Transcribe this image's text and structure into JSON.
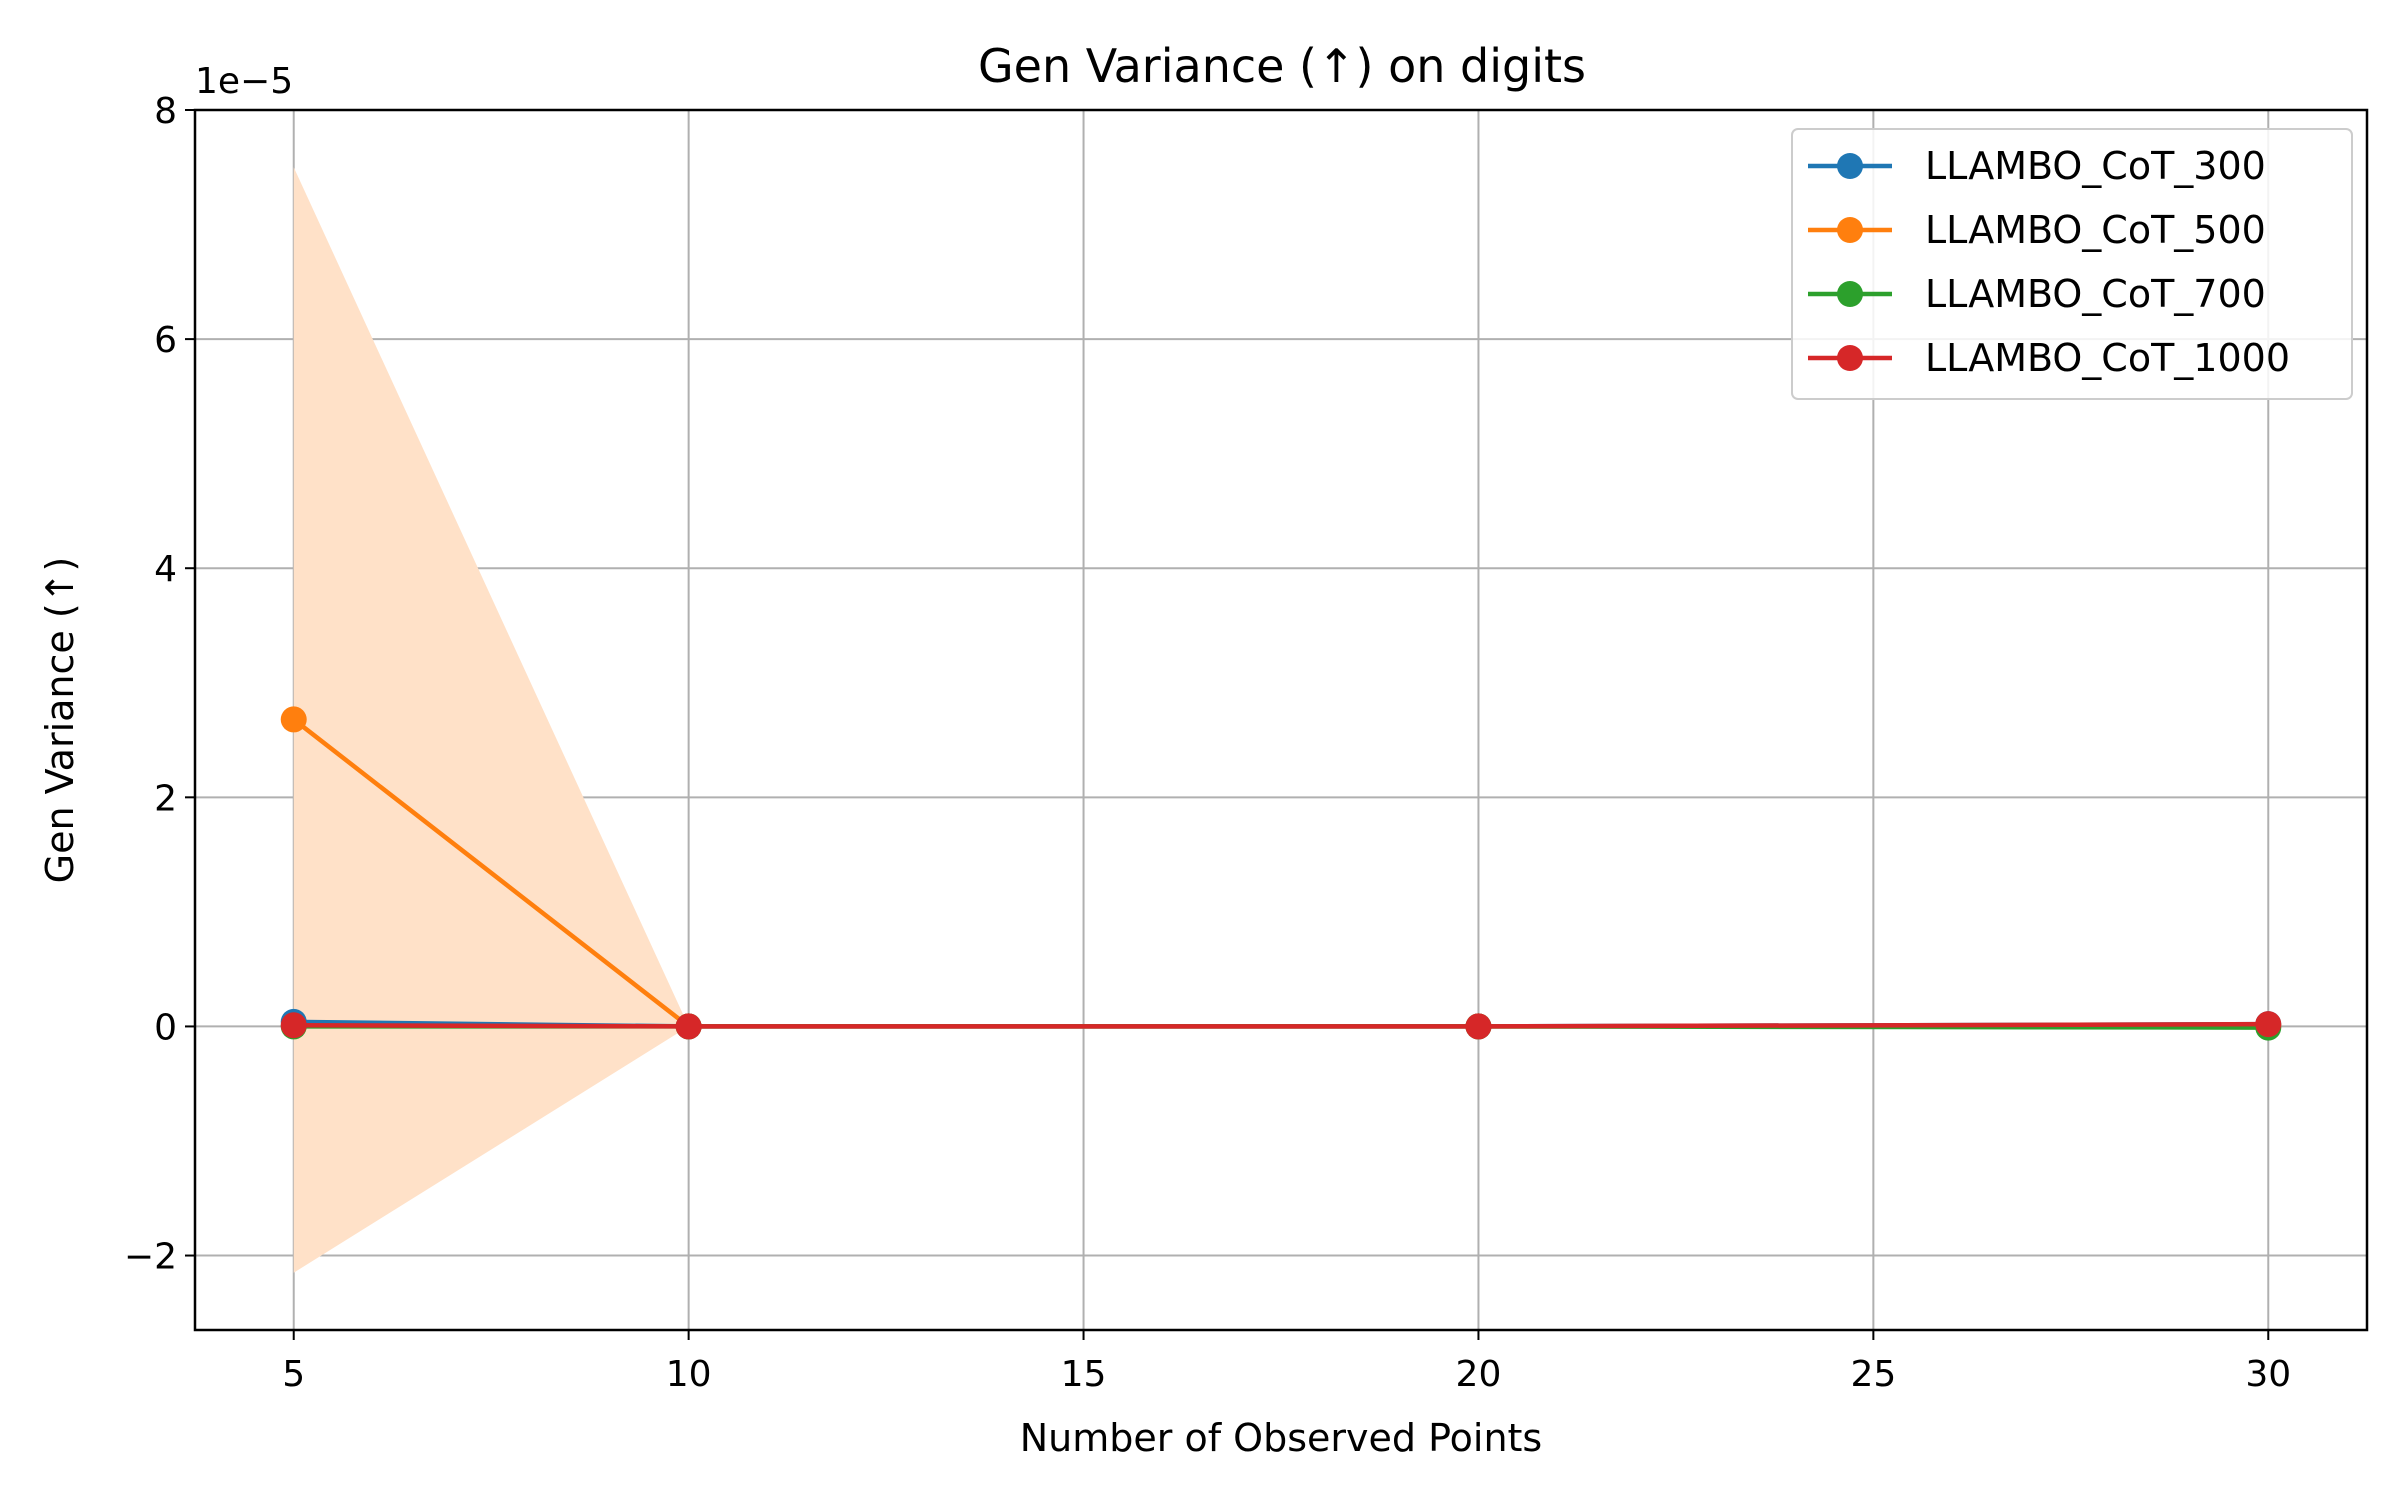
{
  "chart_data": {
    "type": "line",
    "title": "Gen Variance (↑) on digits",
    "xlabel": "Number of Observed Points",
    "ylabel": "Gen Variance (↑)",
    "y_offset_label": "1e−5",
    "y_scale_factor": 1e-05,
    "xlim": [
      3.75,
      31.25
    ],
    "ylim": [
      -2.65,
      8.0
    ],
    "x_ticks": [
      5,
      10,
      15,
      20,
      25,
      30
    ],
    "x_tick_labels": [
      "5",
      "10",
      "15",
      "20",
      "25",
      "30"
    ],
    "y_ticks": [
      -2,
      0,
      2,
      4,
      6,
      8
    ],
    "y_tick_labels": [
      "−2",
      "0",
      "2",
      "4",
      "6",
      "8"
    ],
    "grid": true,
    "legend_position": "upper right",
    "x": [
      5,
      10,
      20,
      30
    ],
    "series": [
      {
        "name": "LLAMBO_CoT_300",
        "color": "#1f77b4",
        "values": [
          0.04,
          0.0,
          0.0,
          0.02
        ],
        "band_lower": [
          0.04,
          0.0,
          0.0,
          0.02
        ],
        "band_upper": [
          0.04,
          0.0,
          0.0,
          0.02
        ]
      },
      {
        "name": "LLAMBO_CoT_500",
        "color": "#ff7f0e",
        "values": [
          2.68,
          0.0,
          0.0,
          0.01
        ],
        "band_lower": [
          -2.15,
          0.0,
          0.0,
          0.01
        ],
        "band_upper": [
          7.5,
          0.0,
          0.0,
          0.01
        ],
        "band_color": "#ffe1c8"
      },
      {
        "name": "LLAMBO_CoT_700",
        "color": "#2ca02c",
        "values": [
          0.0,
          0.0,
          0.0,
          -0.01
        ],
        "band_lower": [
          0.0,
          0.0,
          0.0,
          -0.01
        ],
        "band_upper": [
          0.0,
          0.0,
          0.0,
          -0.01
        ]
      },
      {
        "name": "LLAMBO_CoT_1000",
        "color": "#d62728",
        "values": [
          0.01,
          0.0,
          0.0,
          0.02
        ],
        "band_lower": [
          0.01,
          0.0,
          0.0,
          0.02
        ],
        "band_upper": [
          0.01,
          0.0,
          0.0,
          0.02
        ]
      }
    ]
  }
}
